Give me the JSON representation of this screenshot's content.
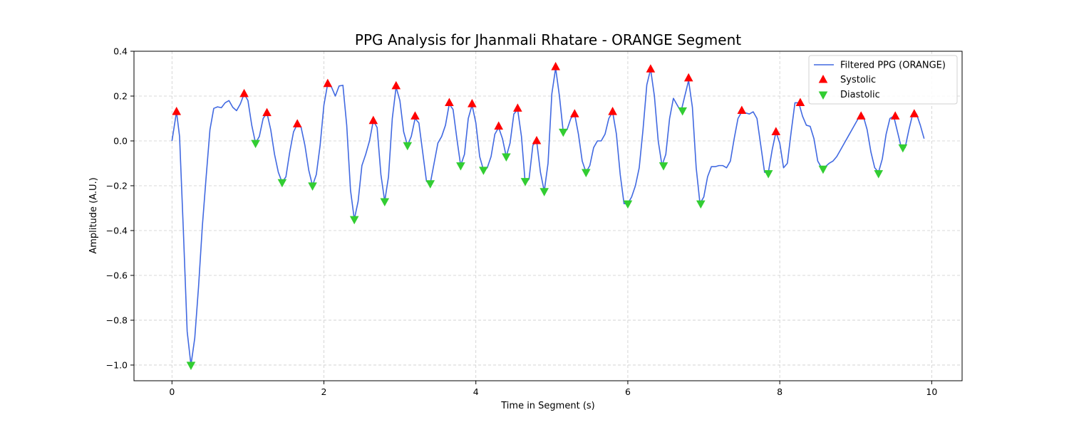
{
  "chart_data": {
    "type": "line",
    "title": "PPG Analysis for Jhanmali Rhatare - ORANGE Segment",
    "xlabel": "Time in Segment (s)",
    "ylabel": "Amplitude (A.U.)",
    "xlim": [
      -0.5,
      10.4
    ],
    "ylim": [
      -1.07,
      0.4
    ],
    "xticks": [
      0,
      2,
      4,
      6,
      8,
      10
    ],
    "yticks": [
      -1.0,
      -0.8,
      -0.6,
      -0.4,
      -0.2,
      0.0,
      0.2,
      0.4
    ],
    "grid": true,
    "legend_position": "top-right",
    "colors": {
      "line": "#4169e1",
      "systolic": "#ff0000",
      "diastolic": "#32cd32"
    },
    "legend": [
      {
        "label": "Filtered PPG (ORANGE)",
        "marker": "line"
      },
      {
        "label": "Systolic",
        "marker": "triangle-up"
      },
      {
        "label": "Diastolic",
        "marker": "triangle-down"
      }
    ],
    "series": [
      {
        "name": "Filtered PPG (ORANGE)",
        "points": [
          [
            0,
            0
          ],
          [
            0.06,
            0.13
          ],
          [
            0.1,
            0.02
          ],
          [
            0.15,
            -0.4
          ],
          [
            0.2,
            -0.85
          ],
          [
            0.25,
            -1.0
          ],
          [
            0.3,
            -0.88
          ],
          [
            0.35,
            -0.65
          ],
          [
            0.4,
            -0.38
          ],
          [
            0.45,
            -0.16
          ],
          [
            0.5,
            0.05
          ],
          [
            0.55,
            0.145
          ],
          [
            0.6,
            0.152
          ],
          [
            0.65,
            0.148
          ],
          [
            0.7,
            0.17
          ],
          [
            0.75,
            0.18
          ],
          [
            0.8,
            0.15
          ],
          [
            0.85,
            0.135
          ],
          [
            0.9,
            0.165
          ],
          [
            0.95,
            0.21
          ],
          [
            1.0,
            0.18
          ],
          [
            1.05,
            0.07
          ],
          [
            1.1,
            -0.01
          ],
          [
            1.15,
            0.02
          ],
          [
            1.2,
            0.1
          ],
          [
            1.25,
            0.125
          ],
          [
            1.3,
            0.05
          ],
          [
            1.35,
            -0.06
          ],
          [
            1.4,
            -0.14
          ],
          [
            1.45,
            -0.185
          ],
          [
            1.5,
            -0.16
          ],
          [
            1.55,
            -0.05
          ],
          [
            1.6,
            0.04
          ],
          [
            1.65,
            0.075
          ],
          [
            1.7,
            0.06
          ],
          [
            1.75,
            -0.02
          ],
          [
            1.8,
            -0.13
          ],
          [
            1.85,
            -0.2
          ],
          [
            1.9,
            -0.15
          ],
          [
            1.95,
            -0.02
          ],
          [
            2.0,
            0.16
          ],
          [
            2.05,
            0.255
          ],
          [
            2.1,
            0.24
          ],
          [
            2.15,
            0.2
          ],
          [
            2.2,
            0.245
          ],
          [
            2.25,
            0.248
          ],
          [
            2.3,
            0.07
          ],
          [
            2.35,
            -0.22
          ],
          [
            2.4,
            -0.35
          ],
          [
            2.45,
            -0.27
          ],
          [
            2.5,
            -0.11
          ],
          [
            2.55,
            -0.06
          ],
          [
            2.6,
            0
          ],
          [
            2.65,
            0.09
          ],
          [
            2.7,
            0.06
          ],
          [
            2.75,
            -0.15
          ],
          [
            2.8,
            -0.27
          ],
          [
            2.85,
            -0.16
          ],
          [
            2.9,
            0.1
          ],
          [
            2.95,
            0.24
          ],
          [
            3.0,
            0.18
          ],
          [
            3.05,
            0.04
          ],
          [
            3.1,
            -0.02
          ],
          [
            3.15,
            0.02
          ],
          [
            3.2,
            0.1
          ],
          [
            3.25,
            0.08
          ],
          [
            3.3,
            -0.05
          ],
          [
            3.35,
            -0.18
          ],
          [
            3.4,
            -0.19
          ],
          [
            3.45,
            -0.1
          ],
          [
            3.5,
            -0.01
          ],
          [
            3.55,
            0.02
          ],
          [
            3.6,
            0.07
          ],
          [
            3.65,
            0.165
          ],
          [
            3.7,
            0.14
          ],
          [
            3.75,
            0.01
          ],
          [
            3.8,
            -0.11
          ],
          [
            3.85,
            -0.06
          ],
          [
            3.9,
            0.1
          ],
          [
            3.95,
            0.16
          ],
          [
            4.0,
            0.08
          ],
          [
            4.05,
            -0.07
          ],
          [
            4.1,
            -0.13
          ],
          [
            4.15,
            -0.12
          ],
          [
            4.2,
            -0.07
          ],
          [
            4.25,
            0.03
          ],
          [
            4.3,
            0.06
          ],
          [
            4.35,
            0.01
          ],
          [
            4.4,
            -0.07
          ],
          [
            4.45,
            -0.01
          ],
          [
            4.5,
            0.12
          ],
          [
            4.55,
            0.14
          ],
          [
            4.6,
            0.02
          ],
          [
            4.65,
            -0.19
          ],
          [
            4.7,
            -0.17
          ],
          [
            4.75,
            -0.02
          ],
          [
            4.8,
            0
          ],
          [
            4.85,
            -0.14
          ],
          [
            4.9,
            -0.225
          ],
          [
            4.95,
            -0.1
          ],
          [
            5.0,
            0.21
          ],
          [
            5.05,
            0.325
          ],
          [
            5.1,
            0.2
          ],
          [
            5.15,
            0.04
          ],
          [
            5.2,
            0.05
          ],
          [
            5.25,
            0.1
          ],
          [
            5.3,
            0.12
          ],
          [
            5.35,
            0.03
          ],
          [
            5.4,
            -0.09
          ],
          [
            5.45,
            -0.14
          ],
          [
            5.5,
            -0.11
          ],
          [
            5.55,
            -0.03
          ],
          [
            5.6,
            0
          ],
          [
            5.65,
            0
          ],
          [
            5.7,
            0.03
          ],
          [
            5.75,
            0.1
          ],
          [
            5.8,
            0.13
          ],
          [
            5.85,
            0.03
          ],
          [
            5.9,
            -0.15
          ],
          [
            5.95,
            -0.28
          ],
          [
            6.0,
            -0.28
          ],
          [
            6.05,
            -0.25
          ],
          [
            6.1,
            -0.2
          ],
          [
            6.15,
            -0.12
          ],
          [
            6.2,
            0.05
          ],
          [
            6.25,
            0.25
          ],
          [
            6.3,
            0.32
          ],
          [
            6.35,
            0.2
          ],
          [
            6.4,
            0
          ],
          [
            6.45,
            -0.11
          ],
          [
            6.5,
            -0.06
          ],
          [
            6.55,
            0.1
          ],
          [
            6.6,
            0.19
          ],
          [
            6.65,
            0.16
          ],
          [
            6.7,
            0.13
          ],
          [
            6.75,
            0.2
          ],
          [
            6.8,
            0.27
          ],
          [
            6.85,
            0.15
          ],
          [
            6.9,
            -0.12
          ],
          [
            6.95,
            -0.28
          ],
          [
            7.0,
            -0.25
          ],
          [
            7.05,
            -0.16
          ],
          [
            7.1,
            -0.115
          ],
          [
            7.15,
            -0.115
          ],
          [
            7.2,
            -0.11
          ],
          [
            7.25,
            -0.11
          ],
          [
            7.3,
            -0.12
          ],
          [
            7.35,
            -0.09
          ],
          [
            7.4,
            0.01
          ],
          [
            7.45,
            0.1
          ],
          [
            7.5,
            0.13
          ],
          [
            7.55,
            0.125
          ],
          [
            7.6,
            0.12
          ],
          [
            7.65,
            0.13
          ],
          [
            7.7,
            0.1
          ],
          [
            7.75,
            -0.02
          ],
          [
            7.8,
            -0.14
          ],
          [
            7.85,
            -0.14
          ],
          [
            7.9,
            -0.04
          ],
          [
            7.95,
            0.04
          ],
          [
            8.0,
            -0.01
          ],
          [
            8.05,
            -0.12
          ],
          [
            8.1,
            -0.1
          ],
          [
            8.15,
            0.04
          ],
          [
            8.2,
            0.17
          ],
          [
            8.25,
            0.17
          ],
          [
            8.3,
            0.11
          ],
          [
            8.35,
            0.07
          ],
          [
            8.4,
            0.065
          ],
          [
            8.45,
            0.01
          ],
          [
            8.5,
            -0.09
          ],
          [
            8.55,
            -0.12
          ],
          [
            8.6,
            -0.115
          ],
          [
            8.65,
            -0.1
          ],
          [
            8.7,
            -0.09
          ],
          [
            8.75,
            -0.07
          ],
          [
            8.8,
            -0.04
          ],
          [
            8.85,
            -0.01
          ],
          [
            8.9,
            0.02
          ],
          [
            8.95,
            0.05
          ],
          [
            9.0,
            0.08
          ],
          [
            9.05,
            0.11
          ],
          [
            9.1,
            0.11
          ],
          [
            9.15,
            0.05
          ],
          [
            9.2,
            -0.05
          ],
          [
            9.25,
            -0.12
          ],
          [
            9.3,
            -0.14
          ],
          [
            9.35,
            -0.08
          ],
          [
            9.4,
            0.03
          ],
          [
            9.45,
            0.1
          ],
          [
            9.5,
            0.11
          ],
          [
            9.55,
            0.04
          ],
          [
            9.6,
            -0.03
          ],
          [
            9.65,
            -0.03
          ],
          [
            9.7,
            0.05
          ],
          [
            9.75,
            0.12
          ],
          [
            9.8,
            0.12
          ],
          [
            9.85,
            0.07
          ],
          [
            9.9,
            0.01
          ]
        ]
      },
      {
        "name": "Systolic",
        "points": [
          [
            0.06,
            0.13
          ],
          [
            0.95,
            0.21
          ],
          [
            1.25,
            0.125
          ],
          [
            1.65,
            0.075
          ],
          [
            2.05,
            0.255
          ],
          [
            2.65,
            0.09
          ],
          [
            2.95,
            0.245
          ],
          [
            3.2,
            0.11
          ],
          [
            3.65,
            0.17
          ],
          [
            3.95,
            0.165
          ],
          [
            4.3,
            0.065
          ],
          [
            4.55,
            0.145
          ],
          [
            4.8,
            0
          ],
          [
            5.05,
            0.33
          ],
          [
            5.3,
            0.12
          ],
          [
            5.8,
            0.13
          ],
          [
            6.3,
            0.32
          ],
          [
            6.8,
            0.28
          ],
          [
            7.5,
            0.135
          ],
          [
            7.95,
            0.04
          ],
          [
            8.27,
            0.17
          ],
          [
            9.07,
            0.11
          ],
          [
            9.52,
            0.11
          ],
          [
            9.77,
            0.12
          ]
        ]
      },
      {
        "name": "Diastolic",
        "points": [
          [
            0.25,
            -1.0
          ],
          [
            1.1,
            -0.01
          ],
          [
            1.45,
            -0.185
          ],
          [
            1.85,
            -0.2
          ],
          [
            2.4,
            -0.35
          ],
          [
            2.8,
            -0.27
          ],
          [
            3.1,
            -0.02
          ],
          [
            3.4,
            -0.19
          ],
          [
            3.8,
            -0.11
          ],
          [
            4.1,
            -0.13
          ],
          [
            4.4,
            -0.07
          ],
          [
            4.65,
            -0.18
          ],
          [
            4.9,
            -0.225
          ],
          [
            5.15,
            0.04
          ],
          [
            5.45,
            -0.14
          ],
          [
            6.0,
            -0.28
          ],
          [
            6.47,
            -0.11
          ],
          [
            6.72,
            0.135
          ],
          [
            6.96,
            -0.28
          ],
          [
            7.85,
            -0.145
          ],
          [
            8.57,
            -0.125
          ],
          [
            9.3,
            -0.145
          ],
          [
            9.62,
            -0.03
          ]
        ]
      }
    ]
  }
}
